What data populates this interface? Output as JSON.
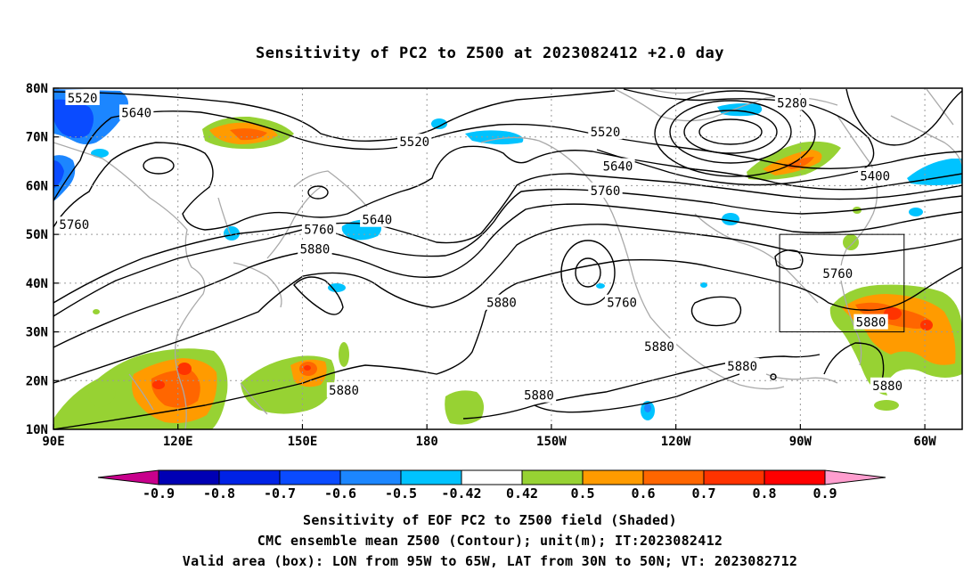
{
  "title": "Sensitivity of PC2 to Z500 at 2023082412 +2.0 day",
  "lat_labels": [
    "80N",
    "70N",
    "60N",
    "50N",
    "40N",
    "30N",
    "20N",
    "10N"
  ],
  "lon_labels": [
    "90E",
    "120E",
    "150E",
    "180",
    "150W",
    "120W",
    "90W",
    "60W"
  ],
  "contour_labels": [
    {
      "text": "5520",
      "lon": 97,
      "lat": 78
    },
    {
      "text": "5640",
      "lon": 110,
      "lat": 75
    },
    {
      "text": "5520",
      "lon": 177,
      "lat": 69
    },
    {
      "text": "5520",
      "lon": 223,
      "lat": 71
    },
    {
      "text": "5280",
      "lon": 268,
      "lat": 77
    },
    {
      "text": "5640",
      "lon": 226,
      "lat": 64
    },
    {
      "text": "5760",
      "lon": 223,
      "lat": 59
    },
    {
      "text": "5400",
      "lon": 288,
      "lat": 62
    },
    {
      "text": "5640",
      "lon": 168,
      "lat": 53
    },
    {
      "text": "5760",
      "lon": 95,
      "lat": 52
    },
    {
      "text": "5760",
      "lon": 154,
      "lat": 51
    },
    {
      "text": "5880",
      "lon": 153,
      "lat": 47
    },
    {
      "text": "5880",
      "lon": 198,
      "lat": 36
    },
    {
      "text": "5760",
      "lon": 227,
      "lat": 36
    },
    {
      "text": "5760",
      "lon": 279,
      "lat": 42
    },
    {
      "text": "5880",
      "lon": 287,
      "lat": 32
    },
    {
      "text": "5880",
      "lon": 236,
      "lat": 27
    },
    {
      "text": "5880",
      "lon": 256,
      "lat": 23
    },
    {
      "text": "5880",
      "lon": 160,
      "lat": 18
    },
    {
      "text": "5880",
      "lon": 207,
      "lat": 17
    },
    {
      "text": "5880",
      "lon": 291,
      "lat": 19
    }
  ],
  "colorbar": {
    "labels": [
      "-0.9",
      "-0.8",
      "-0.7",
      "-0.6",
      "-0.5",
      "-0.42",
      "0.42",
      "0.5",
      "0.6",
      "0.7",
      "0.8",
      "0.9"
    ],
    "colors": [
      "#0000b4",
      "#0022e6",
      "#0a4bff",
      "#1c86ff",
      "#00c3ff",
      "#ffffff",
      "#97d233",
      "#ff9b00",
      "#ff6600",
      "#ff3300",
      "#ff0000"
    ],
    "low_end_color": "#c8008c",
    "high_end_color": "#ff9ecf"
  },
  "captions": [
    "Sensitivity of EOF PC2 to Z500 field (Shaded)",
    "CMC ensemble mean Z500 (Contour); unit(m); IT:2023082412",
    "Valid area (box): LON from 95W to 65W, LAT from 30N to 50N; VT: 2023082712"
  ]
}
